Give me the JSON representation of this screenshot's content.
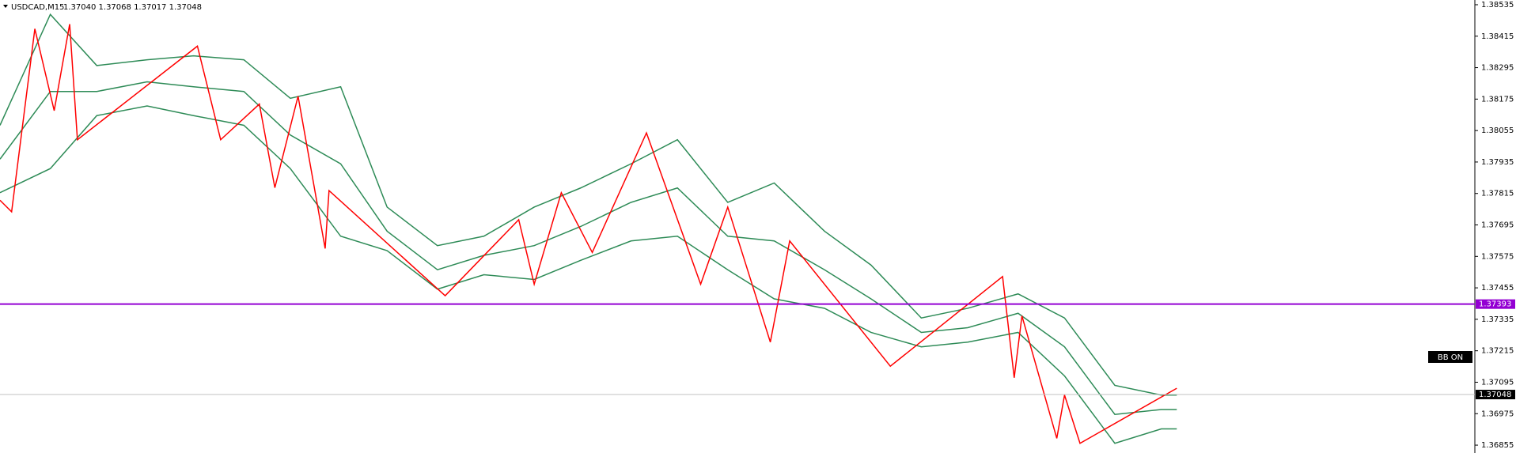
{
  "chart_data": {
    "type": "line",
    "title": "USDCAD,M15",
    "quote": "1.37040 1.37068 1.37017 1.37048",
    "button": "BB ON",
    "xlim": [
      0,
      381
    ],
    "ylim": [
      1.36825,
      1.38553
    ],
    "yticks": [
      1.38535,
      1.38415,
      1.38295,
      1.38175,
      1.38055,
      1.37935,
      1.37815,
      1.37695,
      1.37575,
      1.37455,
      1.37335,
      1.37215,
      1.37095,
      1.36975,
      1.36855
    ],
    "levels": [
      {
        "value": 1.37393,
        "color": "#9400d3"
      },
      {
        "value": 1.37048,
        "color": "#c0c0c0"
      }
    ],
    "series": [
      {
        "color": "#2e8b57",
        "x": [
          0,
          13,
          25,
          38,
          50,
          63,
          75,
          88,
          100,
          113,
          125,
          138,
          150,
          163,
          175,
          188,
          200,
          213,
          225,
          238,
          250,
          263,
          275,
          288,
          300,
          304
        ],
        "values": [
          1.38075,
          1.38498,
          1.38303,
          1.38325,
          1.3834,
          1.38325,
          1.38178,
          1.38222,
          1.37763,
          1.37616,
          1.37652,
          1.37763,
          1.37836,
          1.37928,
          1.3802,
          1.37781,
          1.37855,
          1.37671,
          1.37542,
          1.3734,
          1.37377,
          1.37432,
          1.3734,
          1.37083,
          1.37046,
          1.37046
        ]
      },
      {
        "color": "#2e8b57",
        "x": [
          0,
          13,
          25,
          38,
          50,
          63,
          75,
          88,
          100,
          113,
          125,
          138,
          150,
          163,
          175,
          188,
          200,
          213,
          225,
          238,
          250,
          263,
          275,
          288,
          300,
          304
        ],
        "values": [
          1.37946,
          1.38204,
          1.38204,
          1.38241,
          1.38222,
          1.38204,
          1.38038,
          1.37928,
          1.37671,
          1.37524,
          1.37579,
          1.37616,
          1.37689,
          1.37781,
          1.37836,
          1.37652,
          1.37634,
          1.37524,
          1.37413,
          1.37285,
          1.37303,
          1.37358,
          1.3723,
          1.36972,
          1.36991,
          1.36991
        ]
      },
      {
        "color": "#2e8b57",
        "x": [
          0,
          13,
          25,
          38,
          50,
          63,
          75,
          88,
          100,
          113,
          125,
          138,
          150,
          163,
          175,
          188,
          200,
          213,
          225,
          238,
          250,
          263,
          275,
          288,
          300,
          304
        ],
        "values": [
          1.37818,
          1.3791,
          1.38112,
          1.38149,
          1.38112,
          1.38075,
          1.3791,
          1.37652,
          1.37597,
          1.3745,
          1.37505,
          1.37487,
          1.3756,
          1.37634,
          1.37652,
          1.37524,
          1.37413,
          1.37377,
          1.37285,
          1.3723,
          1.37248,
          1.37285,
          1.37119,
          1.36862,
          1.36917,
          1.36917
        ]
      },
      {
        "color": "#ff0000",
        "x": [
          0,
          3,
          9,
          14,
          18,
          20,
          51,
          57,
          67,
          71,
          77,
          84,
          85,
          115,
          134,
          138,
          145,
          153,
          167,
          181,
          188,
          199,
          204,
          230,
          259,
          262,
          264,
          273,
          275,
          279,
          304
        ],
        "values": [
          1.37789,
          1.37745,
          1.38443,
          1.38131,
          1.38461,
          1.3802,
          1.38377,
          1.3802,
          1.38156,
          1.37837,
          1.38186,
          1.37605,
          1.37826,
          1.37425,
          1.37715,
          1.37469,
          1.37818,
          1.3759,
          1.38046,
          1.37469,
          1.37763,
          1.37248,
          1.37634,
          1.37156,
          1.37498,
          1.37112,
          1.37348,
          1.36881,
          1.37046,
          1.36862,
          1.37072
        ]
      }
    ]
  }
}
